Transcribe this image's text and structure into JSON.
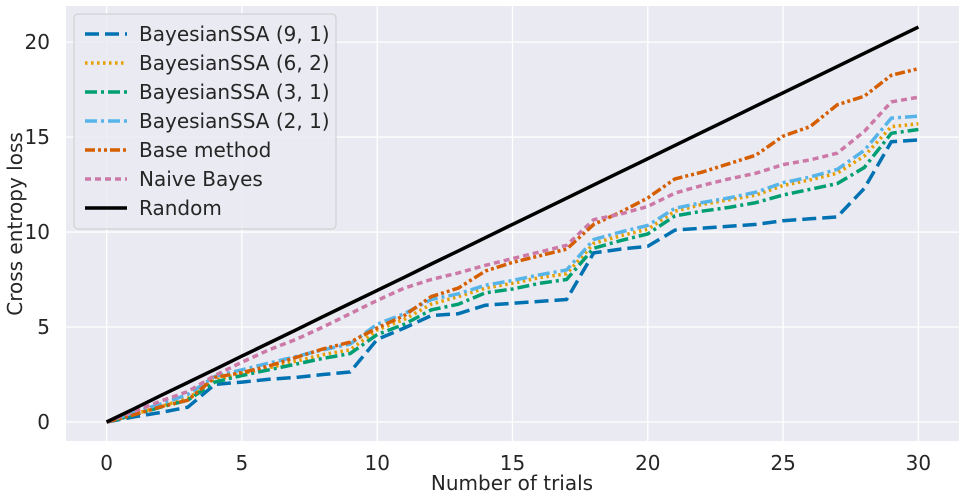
{
  "chart_data": {
    "type": "line",
    "xlabel": "Number of trials",
    "ylabel": "Cross entropy loss",
    "xlim": [
      -1.5,
      31.5
    ],
    "ylim": [
      -1.0,
      21.9
    ],
    "xticks": [
      0,
      5,
      10,
      15,
      20,
      25,
      30
    ],
    "yticks": [
      0,
      5,
      10,
      15,
      20
    ],
    "grid": true,
    "legend_position": "top-left",
    "background_color": "#eaeaf2",
    "x": [
      0,
      1,
      2,
      3,
      4,
      5,
      6,
      7,
      8,
      9,
      10,
      11,
      12,
      13,
      14,
      15,
      16,
      17,
      18,
      19,
      20,
      21,
      22,
      23,
      24,
      25,
      26,
      27,
      28,
      29,
      30
    ],
    "series": [
      {
        "name": "BayesianSSA (9, 1)",
        "color": "#0072b2",
        "dash": "long-dash",
        "values": [
          0.0,
          0.27,
          0.5,
          0.78,
          1.98,
          2.1,
          2.25,
          2.35,
          2.5,
          2.63,
          4.35,
          4.95,
          5.6,
          5.7,
          6.15,
          6.25,
          6.35,
          6.45,
          8.9,
          9.1,
          9.25,
          10.1,
          10.2,
          10.3,
          10.4,
          10.6,
          10.7,
          10.8,
          12.3,
          14.75,
          14.85
        ]
      },
      {
        "name": "BayesianSSA (6, 2)",
        "color": "#e69f00",
        "dash": "dotted",
        "values": [
          0.0,
          0.4,
          0.82,
          1.25,
          2.2,
          2.55,
          2.85,
          3.2,
          3.55,
          3.8,
          4.85,
          5.4,
          6.2,
          6.6,
          7.05,
          7.3,
          7.6,
          7.8,
          9.4,
          9.8,
          10.15,
          11.1,
          11.45,
          11.7,
          11.95,
          12.45,
          12.75,
          13.1,
          14.0,
          15.55,
          15.7
        ]
      },
      {
        "name": "BayesianSSA (3, 1)",
        "color": "#009e73",
        "dash": "dash-dot",
        "values": [
          0.0,
          0.37,
          0.78,
          1.15,
          2.1,
          2.45,
          2.75,
          3.05,
          3.35,
          3.6,
          4.6,
          5.15,
          5.9,
          6.2,
          6.8,
          7.0,
          7.3,
          7.5,
          9.15,
          9.55,
          9.9,
          10.85,
          11.1,
          11.3,
          11.55,
          11.95,
          12.25,
          12.55,
          13.4,
          15.2,
          15.4
        ]
      },
      {
        "name": "BayesianSSA (2, 1)",
        "color": "#56b4e9",
        "dash": "dash-dot",
        "values": [
          0.0,
          0.5,
          0.95,
          1.45,
          2.4,
          2.75,
          3.1,
          3.45,
          3.8,
          4.1,
          5.15,
          5.7,
          6.45,
          6.75,
          7.2,
          7.45,
          7.75,
          8.0,
          9.6,
          10.0,
          10.35,
          11.25,
          11.55,
          11.8,
          12.1,
          12.6,
          12.9,
          13.3,
          14.3,
          16.0,
          16.1
        ]
      },
      {
        "name": "Base method",
        "color": "#d55e00",
        "dash": "dash-dot-dot",
        "values": [
          0.0,
          0.38,
          0.8,
          1.15,
          2.35,
          2.6,
          2.95,
          3.4,
          3.85,
          4.2,
          4.95,
          5.6,
          6.6,
          7.05,
          7.95,
          8.4,
          8.75,
          9.1,
          10.4,
          11.05,
          11.8,
          12.8,
          13.15,
          13.6,
          14.05,
          15.05,
          15.55,
          16.7,
          17.15,
          18.25,
          18.6
        ]
      },
      {
        "name": "Naive Bayes",
        "color": "#cc79a7",
        "dash": "short-dash",
        "values": [
          0.0,
          0.55,
          1.1,
          1.6,
          2.45,
          3.15,
          3.8,
          4.35,
          5.0,
          5.7,
          6.4,
          7.05,
          7.5,
          7.85,
          8.25,
          8.6,
          8.95,
          9.3,
          10.65,
          10.95,
          11.35,
          12.05,
          12.45,
          12.8,
          13.1,
          13.55,
          13.8,
          14.15,
          15.3,
          16.85,
          17.1
        ]
      },
      {
        "name": "Random",
        "color": "#000000",
        "dash": "solid",
        "values": [
          0.0,
          0.69,
          1.39,
          2.08,
          2.77,
          3.47,
          4.16,
          4.85,
          5.55,
          6.24,
          6.93,
          7.62,
          8.32,
          9.01,
          9.7,
          10.4,
          11.09,
          11.78,
          12.48,
          13.17,
          13.86,
          14.56,
          15.25,
          15.94,
          16.64,
          17.33,
          18.02,
          18.71,
          19.41,
          20.1,
          20.79
        ]
      }
    ]
  }
}
